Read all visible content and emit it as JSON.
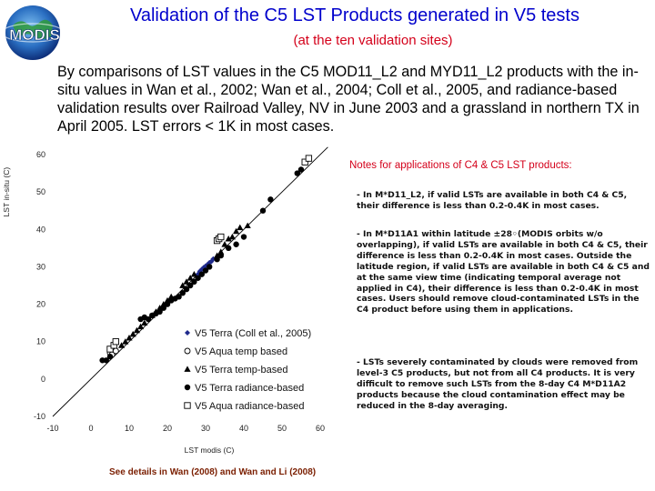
{
  "header": {
    "logo_text": "MODIS",
    "title": "Validation of the C5 LST Products generated in V5 tests",
    "subtitle": "(at the ten validation sites)"
  },
  "intro": "By comparisons of LST values in the C5 MOD11_L2 and MYD11_L2 products with the in-situ values in Wan et al., 2002; Wan et al., 2004; Coll et al., 2005, and radiance-based validation results over Railroad Valley, NV in June 2003 and a grassland in northern TX in April 2005. LST errors < 1K in most cases.",
  "chart_data": {
    "type": "scatter",
    "xlabel": "LST modis (C)",
    "ylabel": "LST in-situ (C)",
    "xlim": [
      -10,
      60
    ],
    "ylim": [
      -10,
      60
    ],
    "x_ticks": [
      "-10",
      "0",
      "10",
      "20",
      "30",
      "40",
      "50",
      "60"
    ],
    "y_ticks": [
      "60",
      "50",
      "40",
      "30",
      "20",
      "10",
      "0",
      "-10"
    ],
    "reference_line": "1:1",
    "legend": {
      "placement": "bottom-right"
    },
    "series": [
      {
        "name": "V5 Terra (Coll et al., 2005)",
        "marker": "diamond-small",
        "color": "#1f2a8c",
        "points": [
          [
            28,
            28
          ],
          [
            28.5,
            28.8
          ],
          [
            29,
            29.3
          ],
          [
            29.5,
            29.8
          ],
          [
            30,
            30.2
          ],
          [
            30.5,
            30.6
          ],
          [
            31,
            31.1
          ],
          [
            31.5,
            31.4
          ],
          [
            32,
            32.1
          ]
        ]
      },
      {
        "name": "V5 Aqua temp based",
        "marker": "circle-open",
        "color": "#000000",
        "points": [
          [
            5,
            7
          ],
          [
            6,
            8
          ],
          [
            5.5,
            6.5
          ],
          [
            6.5,
            7.5
          ]
        ]
      },
      {
        "name": "V5 Terra temp-based",
        "marker": "triangle",
        "color": "#000000",
        "points": [
          [
            8,
            9
          ],
          [
            9,
            10
          ],
          [
            10,
            11
          ],
          [
            11,
            12
          ],
          [
            12,
            13
          ],
          [
            13,
            14
          ],
          [
            14,
            15
          ],
          [
            16,
            17
          ],
          [
            17,
            18
          ],
          [
            18,
            19
          ],
          [
            19,
            20
          ],
          [
            20,
            21
          ],
          [
            21,
            22
          ],
          [
            24,
            25
          ],
          [
            25,
            26
          ],
          [
            26,
            27
          ],
          [
            27,
            28
          ],
          [
            33,
            33
          ],
          [
            34,
            34
          ],
          [
            35,
            36
          ],
          [
            36,
            37.5
          ],
          [
            37,
            38
          ],
          [
            38,
            39.5
          ],
          [
            39,
            40.5
          ],
          [
            41,
            41
          ]
        ]
      },
      {
        "name": "V5 Terra radiance-based",
        "marker": "circle-filled",
        "color": "#000000",
        "points": [
          [
            3,
            5
          ],
          [
            4,
            5
          ],
          [
            5,
            6
          ],
          [
            13,
            16
          ],
          [
            14,
            16.5
          ],
          [
            15,
            16
          ],
          [
            16,
            17
          ],
          [
            17,
            17.5
          ],
          [
            18,
            18
          ],
          [
            19,
            19
          ],
          [
            20,
            20
          ],
          [
            21,
            21
          ],
          [
            22,
            21.5
          ],
          [
            23,
            22
          ],
          [
            24,
            23
          ],
          [
            25,
            24
          ],
          [
            26,
            25
          ],
          [
            27,
            26
          ],
          [
            28,
            27
          ],
          [
            29,
            28
          ],
          [
            30,
            29
          ],
          [
            31,
            30
          ],
          [
            33,
            32
          ],
          [
            34,
            33
          ],
          [
            36,
            35
          ],
          [
            38,
            36
          ],
          [
            40,
            38
          ],
          [
            45,
            45
          ],
          [
            47,
            48
          ],
          [
            54,
            55
          ],
          [
            55,
            56
          ]
        ]
      },
      {
        "name": "V5 Aqua radiance-based",
        "marker": "square-open",
        "color": "#000000",
        "points": [
          [
            5,
            8
          ],
          [
            6,
            9
          ],
          [
            6.5,
            10
          ],
          [
            33,
            37
          ],
          [
            33.5,
            37.5
          ],
          [
            34,
            38
          ],
          [
            56,
            58
          ],
          [
            57,
            59
          ]
        ]
      }
    ]
  },
  "notes": {
    "title": "Notes for applications of C4 & C5 LST products:",
    "items": [
      "- In M*D11_L2, if valid LSTs are available in both C4 & C5, their difference is less than 0.2-0.4K in most cases.",
      "- In M*D11A1 within latitude ±28◦(MODIS orbits w/o overlapping), if valid LSTs are available in both C4 & C5, their difference is less than 0.2-0.4K in most cases. Outside the latitude region, if valid LSTs are available in both C4 & C5 and at the same view time (indicating temporal average not applied in C4), their difference is less than 0.2-0.4K in most cases. Users should remove cloud-contaminated LSTs in the C4 product before using them in applications.",
      "- LSTs severely contaminated by clouds were removed from level-3 C5 products, but not from all C4 products. It is very difficult to remove such LSTs from the 8-day C4 M*D11A2 products because the cloud contamination effect may be reduced in the 8-day averaging."
    ]
  },
  "footer": "See details in Wan (2008) and Wan and Li (2008)"
}
